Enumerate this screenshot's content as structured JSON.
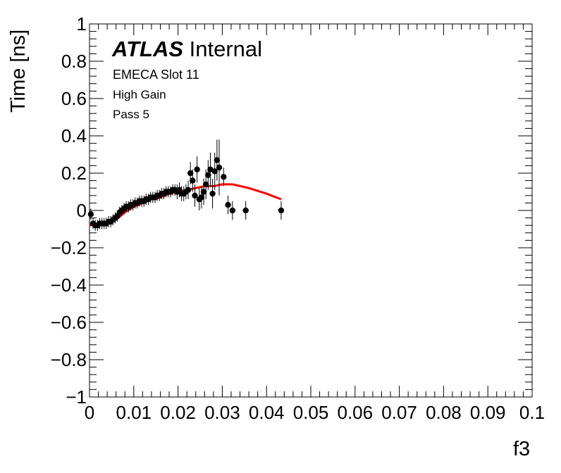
{
  "annotations": {
    "atlas": "ATLAS",
    "internal": "Internal",
    "line1": "EMECA Slot 11",
    "line2": "High Gain",
    "line3": "Pass 5"
  },
  "colors": {
    "points": "#000000",
    "fit": "#ff0000"
  },
  "chart_data": {
    "type": "scatter",
    "xlabel": "f3",
    "ylabel": "Time [ns]",
    "xlim": [
      0,
      0.1
    ],
    "ylim": [
      -1,
      1
    ],
    "x_ticks": [
      "0",
      "0.01",
      "0.02",
      "0.03",
      "0.04",
      "0.05",
      "0.06",
      "0.07",
      "0.08",
      "0.09",
      "0.1"
    ],
    "y_ticks": [
      "−1",
      "−0.8",
      "−0.6",
      "−0.4",
      "−0.2",
      "0",
      "0.2",
      "0.4",
      "0.6",
      "0.8",
      "1"
    ],
    "grid": false,
    "series": [
      {
        "kind": "points",
        "x": [
          0.0003,
          0.0008,
          0.0013,
          0.0018,
          0.0023,
          0.0028,
          0.0033,
          0.0038,
          0.0043,
          0.0048,
          0.0053,
          0.0058,
          0.0063,
          0.0068,
          0.0073,
          0.0078,
          0.0083,
          0.0088,
          0.0093,
          0.0098,
          0.0103,
          0.0108,
          0.0113,
          0.0118,
          0.0123,
          0.0128,
          0.0133,
          0.0138,
          0.0143,
          0.0148,
          0.0153,
          0.0158,
          0.0163,
          0.0168,
          0.0173,
          0.0178,
          0.0183,
          0.0188,
          0.0193,
          0.0198,
          0.0203,
          0.0208,
          0.0213,
          0.0218,
          0.0223,
          0.0228,
          0.0233,
          0.0238,
          0.0243,
          0.0248,
          0.0253,
          0.0258,
          0.0263,
          0.0268,
          0.0273,
          0.0278,
          0.0283,
          0.0288,
          0.0293,
          0.0303,
          0.0313,
          0.0323,
          0.0353,
          0.0433
        ],
        "y": [
          -0.02,
          -0.07,
          -0.08,
          -0.08,
          -0.07,
          -0.07,
          -0.07,
          -0.07,
          -0.06,
          -0.06,
          -0.05,
          -0.04,
          -0.03,
          -0.01,
          0.0,
          0.01,
          0.02,
          0.02,
          0.03,
          0.03,
          0.04,
          0.04,
          0.05,
          0.05,
          0.05,
          0.06,
          0.06,
          0.07,
          0.07,
          0.07,
          0.08,
          0.08,
          0.09,
          0.09,
          0.1,
          0.1,
          0.1,
          0.11,
          0.11,
          0.1,
          0.11,
          0.09,
          0.09,
          0.1,
          0.11,
          0.2,
          0.16,
          0.08,
          0.22,
          0.06,
          0.07,
          0.1,
          0.14,
          0.19,
          0.22,
          0.09,
          0.21,
          0.27,
          0.23,
          0.18,
          0.03,
          0.0,
          0.0,
          0.0
        ],
        "err": [
          0.03,
          0.03,
          0.03,
          0.03,
          0.03,
          0.03,
          0.03,
          0.03,
          0.03,
          0.03,
          0.03,
          0.03,
          0.03,
          0.03,
          0.03,
          0.03,
          0.03,
          0.03,
          0.03,
          0.03,
          0.03,
          0.03,
          0.03,
          0.03,
          0.03,
          0.03,
          0.03,
          0.03,
          0.03,
          0.03,
          0.03,
          0.03,
          0.03,
          0.03,
          0.03,
          0.03,
          0.03,
          0.03,
          0.03,
          0.04,
          0.04,
          0.04,
          0.04,
          0.04,
          0.05,
          0.06,
          0.06,
          0.06,
          0.07,
          0.06,
          0.06,
          0.07,
          0.08,
          0.08,
          0.09,
          0.08,
          0.1,
          0.11,
          0.15,
          0.05,
          0.05,
          0.05,
          0.05,
          0.05
        ]
      },
      {
        "kind": "line",
        "x": [
          0.0,
          0.002,
          0.004,
          0.006,
          0.008,
          0.01,
          0.012,
          0.014,
          0.016,
          0.018,
          0.02,
          0.022,
          0.024,
          0.026,
          0.028,
          0.03,
          0.0323,
          0.036,
          0.04,
          0.0433
        ],
        "y": [
          -0.08,
          -0.07,
          -0.07,
          -0.05,
          -0.01,
          0.02,
          0.04,
          0.06,
          0.07,
          0.09,
          0.1,
          0.11,
          0.12,
          0.13,
          0.13,
          0.14,
          0.14,
          0.12,
          0.09,
          0.06
        ]
      }
    ]
  }
}
